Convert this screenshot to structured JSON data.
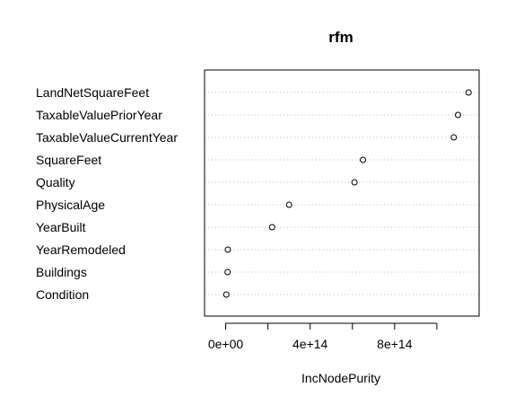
{
  "chart_data": {
    "type": "scatter",
    "title": "rfm",
    "xlabel": "IncNodePurity",
    "ylabel": "",
    "categories": [
      "LandNetSquareFeet",
      "TaxableValuePriorYear",
      "TaxableValueCurrentYear",
      "SquareFeet",
      "Quality",
      "PhysicalAge",
      "YearBuilt",
      "YearRemodeled",
      "Buildings",
      "Condition"
    ],
    "values": [
      1150000000000000.0,
      1100000000000000.0,
      1080000000000000.0,
      650000000000000.0,
      610000000000000.0,
      300000000000000.0,
      220000000000000.0,
      10000000000000.0,
      9000000000000.0,
      3000000000000.0
    ],
    "xlim": [
      -100000000000000.0,
      1200000000000000.0
    ],
    "xticks": [
      0,
      200000000000000.0,
      400000000000000.0,
      600000000000000.0,
      800000000000000.0,
      1000000000000000.0
    ],
    "xtick_labels": [
      "0e+00",
      "",
      "4e+14",
      "",
      "8e+14",
      ""
    ],
    "grid": "dotted-horizontal",
    "colors": {
      "points": "#000000",
      "grid": "#bebebe",
      "axes": "#000000"
    }
  }
}
